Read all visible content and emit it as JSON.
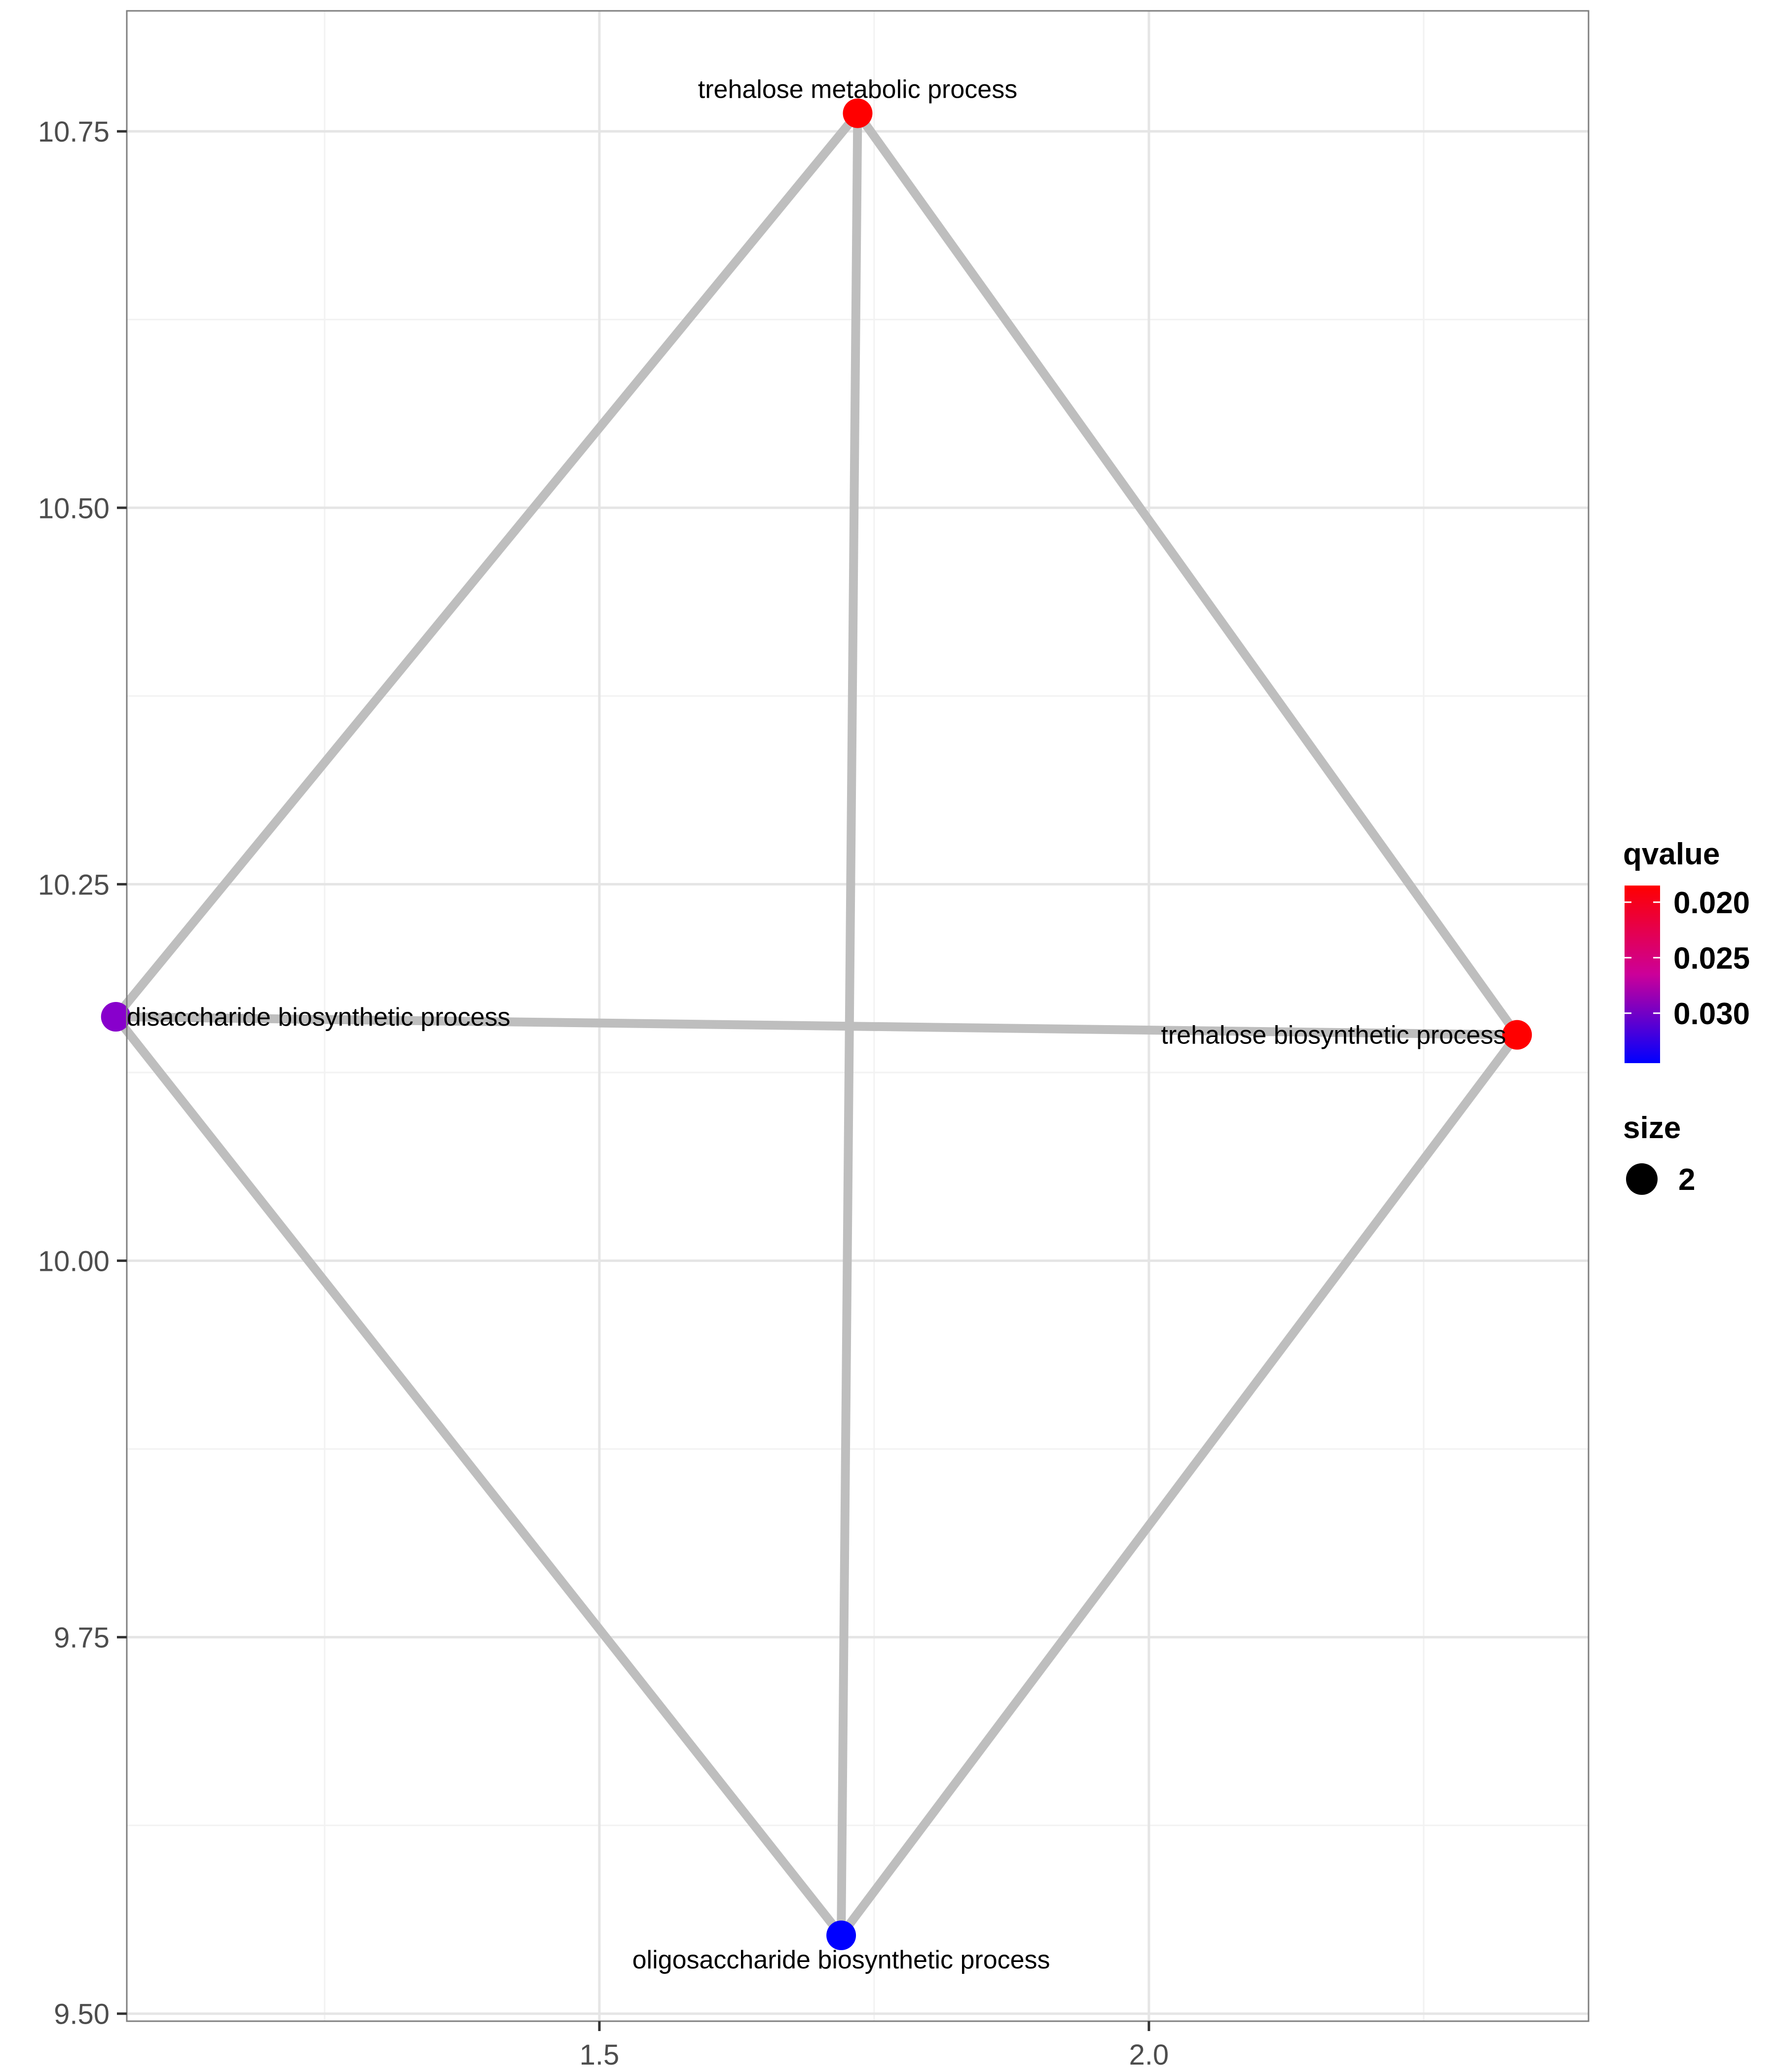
{
  "chart_data": {
    "type": "network",
    "xlim": [
      1.07,
      2.4
    ],
    "ylim": [
      9.495,
      10.83
    ],
    "x_ticks": [
      {
        "value": 1.5,
        "label": "1.5"
      },
      {
        "value": 2.0,
        "label": "2.0"
      }
    ],
    "x_minor": [
      1.25,
      1.75,
      2.25
    ],
    "y_ticks": [
      {
        "value": 9.5,
        "label": "9.50"
      },
      {
        "value": 9.75,
        "label": "9.75"
      },
      {
        "value": 10.0,
        "label": "10.00"
      },
      {
        "value": 10.25,
        "label": "10.25"
      },
      {
        "value": 10.5,
        "label": "10.50"
      },
      {
        "value": 10.75,
        "label": "10.75"
      }
    ],
    "y_minor": [
      9.625,
      9.875,
      10.125,
      10.375,
      10.625
    ],
    "grid": true,
    "nodes": [
      {
        "id": "tmp",
        "label": "trehalose metabolic process",
        "x": 1.735,
        "y": 10.762,
        "qvalue": 0.0185,
        "color": "#ff0000",
        "label_anchor": "middle",
        "label_dx": 0,
        "label_dy": 0.016
      },
      {
        "id": "dbp",
        "label": "disaccharide biosynthetic process",
        "x": 1.06,
        "y": 10.162,
        "qvalue": 0.0315,
        "color": "#8800cc",
        "label_anchor": "start",
        "label_dx": 0.01,
        "label_dy": 0.0
      },
      {
        "id": "tbp",
        "label": "trehalose biosynthetic process",
        "x": 2.335,
        "y": 10.15,
        "qvalue": 0.0185,
        "color": "#ff0000",
        "label_anchor": "end",
        "label_dx": -0.01,
        "label_dy": 0.0
      },
      {
        "id": "obp",
        "label": "oligosaccharide biosynthetic process",
        "x": 1.72,
        "y": 9.552,
        "qvalue": 0.0345,
        "color": "#0000ff",
        "label_anchor": "middle",
        "label_dx": 0,
        "label_dy": -0.016
      }
    ],
    "edges": [
      [
        "tmp",
        "dbp"
      ],
      [
        "tmp",
        "tbp"
      ],
      [
        "tmp",
        "obp"
      ],
      [
        "dbp",
        "tbp"
      ],
      [
        "dbp",
        "obp"
      ],
      [
        "tbp",
        "obp"
      ]
    ],
    "edge_color": "#bebebe",
    "legend": {
      "position": "right",
      "color_title": "qvalue",
      "color_breaks": [
        {
          "value": 0.02,
          "label": "0.020"
        },
        {
          "value": 0.025,
          "label": "0.025"
        },
        {
          "value": 0.03,
          "label": "0.030"
        }
      ],
      "color_range": [
        0.0185,
        0.0345
      ],
      "color_low": "#ff0000",
      "color_high": "#0000ff",
      "size_title": "size",
      "size_items": [
        {
          "label": "2"
        }
      ]
    }
  }
}
